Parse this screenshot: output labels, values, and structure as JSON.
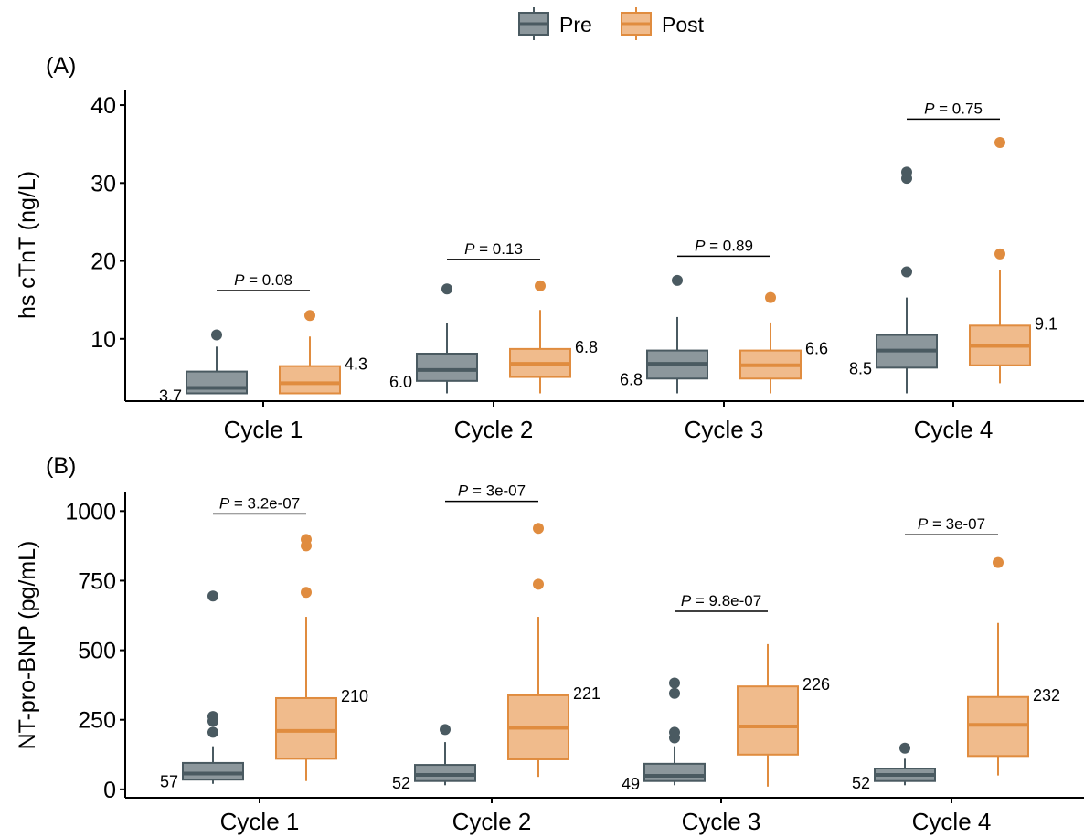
{
  "legend": {
    "position": "top-center",
    "items": [
      {
        "label": "Pre",
        "fill": "#8C979C",
        "stroke": "#4A5A61"
      },
      {
        "label": "Post",
        "fill": "#F0BB8C",
        "stroke": "#E08C3F"
      }
    ]
  },
  "chart_data": [
    {
      "type": "box",
      "panel_label": "(A)",
      "ylabel": "hs cTnT (ng/L)",
      "ylim": [
        2,
        42
      ],
      "yticks": [
        10,
        20,
        30,
        40
      ],
      "categories": [
        "Cycle 1",
        "Cycle 2",
        "Cycle 3",
        "Cycle 4"
      ],
      "grid": false,
      "series": [
        {
          "name": "Pre",
          "boxes": [
            {
              "whisker_low": 3.0,
              "q1": 3.0,
              "median": 3.7,
              "q3": 5.8,
              "whisker_high": 9.0,
              "outliers": [
                10.5
              ],
              "median_label": "3.7"
            },
            {
              "whisker_low": 3.0,
              "q1": 4.6,
              "median": 6.0,
              "q3": 8.1,
              "whisker_high": 12.0,
              "outliers": [
                16.4
              ],
              "median_label": "6.0"
            },
            {
              "whisker_low": 3.0,
              "q1": 4.9,
              "median": 6.8,
              "q3": 8.5,
              "whisker_high": 12.8,
              "outliers": [
                17.5
              ],
              "median_label": "6.8"
            },
            {
              "whisker_low": 3.0,
              "q1": 6.3,
              "median": 8.5,
              "q3": 10.5,
              "whisker_high": 15.3,
              "outliers": [
                18.6,
                30.6,
                31.4
              ],
              "median_label": "8.5"
            }
          ]
        },
        {
          "name": "Post",
          "boxes": [
            {
              "whisker_low": 3.0,
              "q1": 3.0,
              "median": 4.3,
              "q3": 6.5,
              "whisker_high": 10.3,
              "outliers": [
                13.0
              ],
              "median_label": "4.3"
            },
            {
              "whisker_low": 3.0,
              "q1": 5.1,
              "median": 6.8,
              "q3": 8.7,
              "whisker_high": 13.7,
              "outliers": [
                16.8
              ],
              "median_label": "6.8"
            },
            {
              "whisker_low": 3.0,
              "q1": 4.9,
              "median": 6.6,
              "q3": 8.5,
              "whisker_high": 12.1,
              "outliers": [
                15.3
              ],
              "median_label": "6.6"
            },
            {
              "whisker_low": 4.3,
              "q1": 6.6,
              "median": 9.1,
              "q3": 11.7,
              "whisker_high": 18.8,
              "outliers": [
                20.9,
                35.2
              ],
              "median_label": "9.1"
            }
          ]
        }
      ],
      "pvalues": [
        {
          "text": "= 0.08",
          "y": 16.2
        },
        {
          "text": "= 0.13",
          "y": 20.2
        },
        {
          "text": "= 0.89",
          "y": 20.6
        },
        {
          "text": "= 0.75",
          "y": 38.2
        }
      ]
    },
    {
      "type": "box",
      "panel_label": "(B)",
      "ylabel": "NT-pro-BNP (pg/mL)",
      "ylim": [
        -30,
        1070
      ],
      "yticks": [
        0,
        250,
        500,
        750,
        1000
      ],
      "categories": [
        "Cycle 1",
        "Cycle 2",
        "Cycle 3",
        "Cycle 4"
      ],
      "grid": false,
      "series": [
        {
          "name": "Pre",
          "boxes": [
            {
              "whisker_low": 20,
              "q1": 35,
              "median": 57,
              "q3": 95,
              "whisker_high": 155,
              "outliers": [
                205,
                245,
                262,
                695
              ],
              "median_label": "57"
            },
            {
              "whisker_low": 15,
              "q1": 30,
              "median": 52,
              "q3": 88,
              "whisker_high": 170,
              "outliers": [
                215
              ],
              "median_label": "52"
            },
            {
              "whisker_low": 15,
              "q1": 30,
              "median": 49,
              "q3": 92,
              "whisker_high": 155,
              "outliers": [
                185,
                205,
                345,
                382
              ],
              "median_label": "49"
            },
            {
              "whisker_low": 15,
              "q1": 30,
              "median": 52,
              "q3": 75,
              "whisker_high": 110,
              "outliers": [
                148
              ],
              "median_label": "52"
            }
          ]
        },
        {
          "name": "Post",
          "boxes": [
            {
              "whisker_low": 30,
              "q1": 110,
              "median": 210,
              "q3": 328,
              "whisker_high": 620,
              "outliers": [
                708,
                875,
                898
              ],
              "median_label": "210"
            },
            {
              "whisker_low": 45,
              "q1": 108,
              "median": 221,
              "q3": 338,
              "whisker_high": 620,
              "outliers": [
                737,
                938
              ],
              "median_label": "221"
            },
            {
              "whisker_low": 10,
              "q1": 125,
              "median": 226,
              "q3": 370,
              "whisker_high": 522,
              "outliers": [],
              "median_label": "226"
            },
            {
              "whisker_low": 50,
              "q1": 120,
              "median": 232,
              "q3": 332,
              "whisker_high": 598,
              "outliers": [
                815
              ],
              "median_label": "232"
            }
          ]
        }
      ],
      "pvalues": [
        {
          "text": "= 3.2e-07",
          "y": 990
        },
        {
          "text": "= 3e-07",
          "y": 1035
        },
        {
          "text": "= 9.8e-07",
          "y": 640
        },
        {
          "text": "= 3e-07",
          "y": 915
        }
      ]
    }
  ]
}
